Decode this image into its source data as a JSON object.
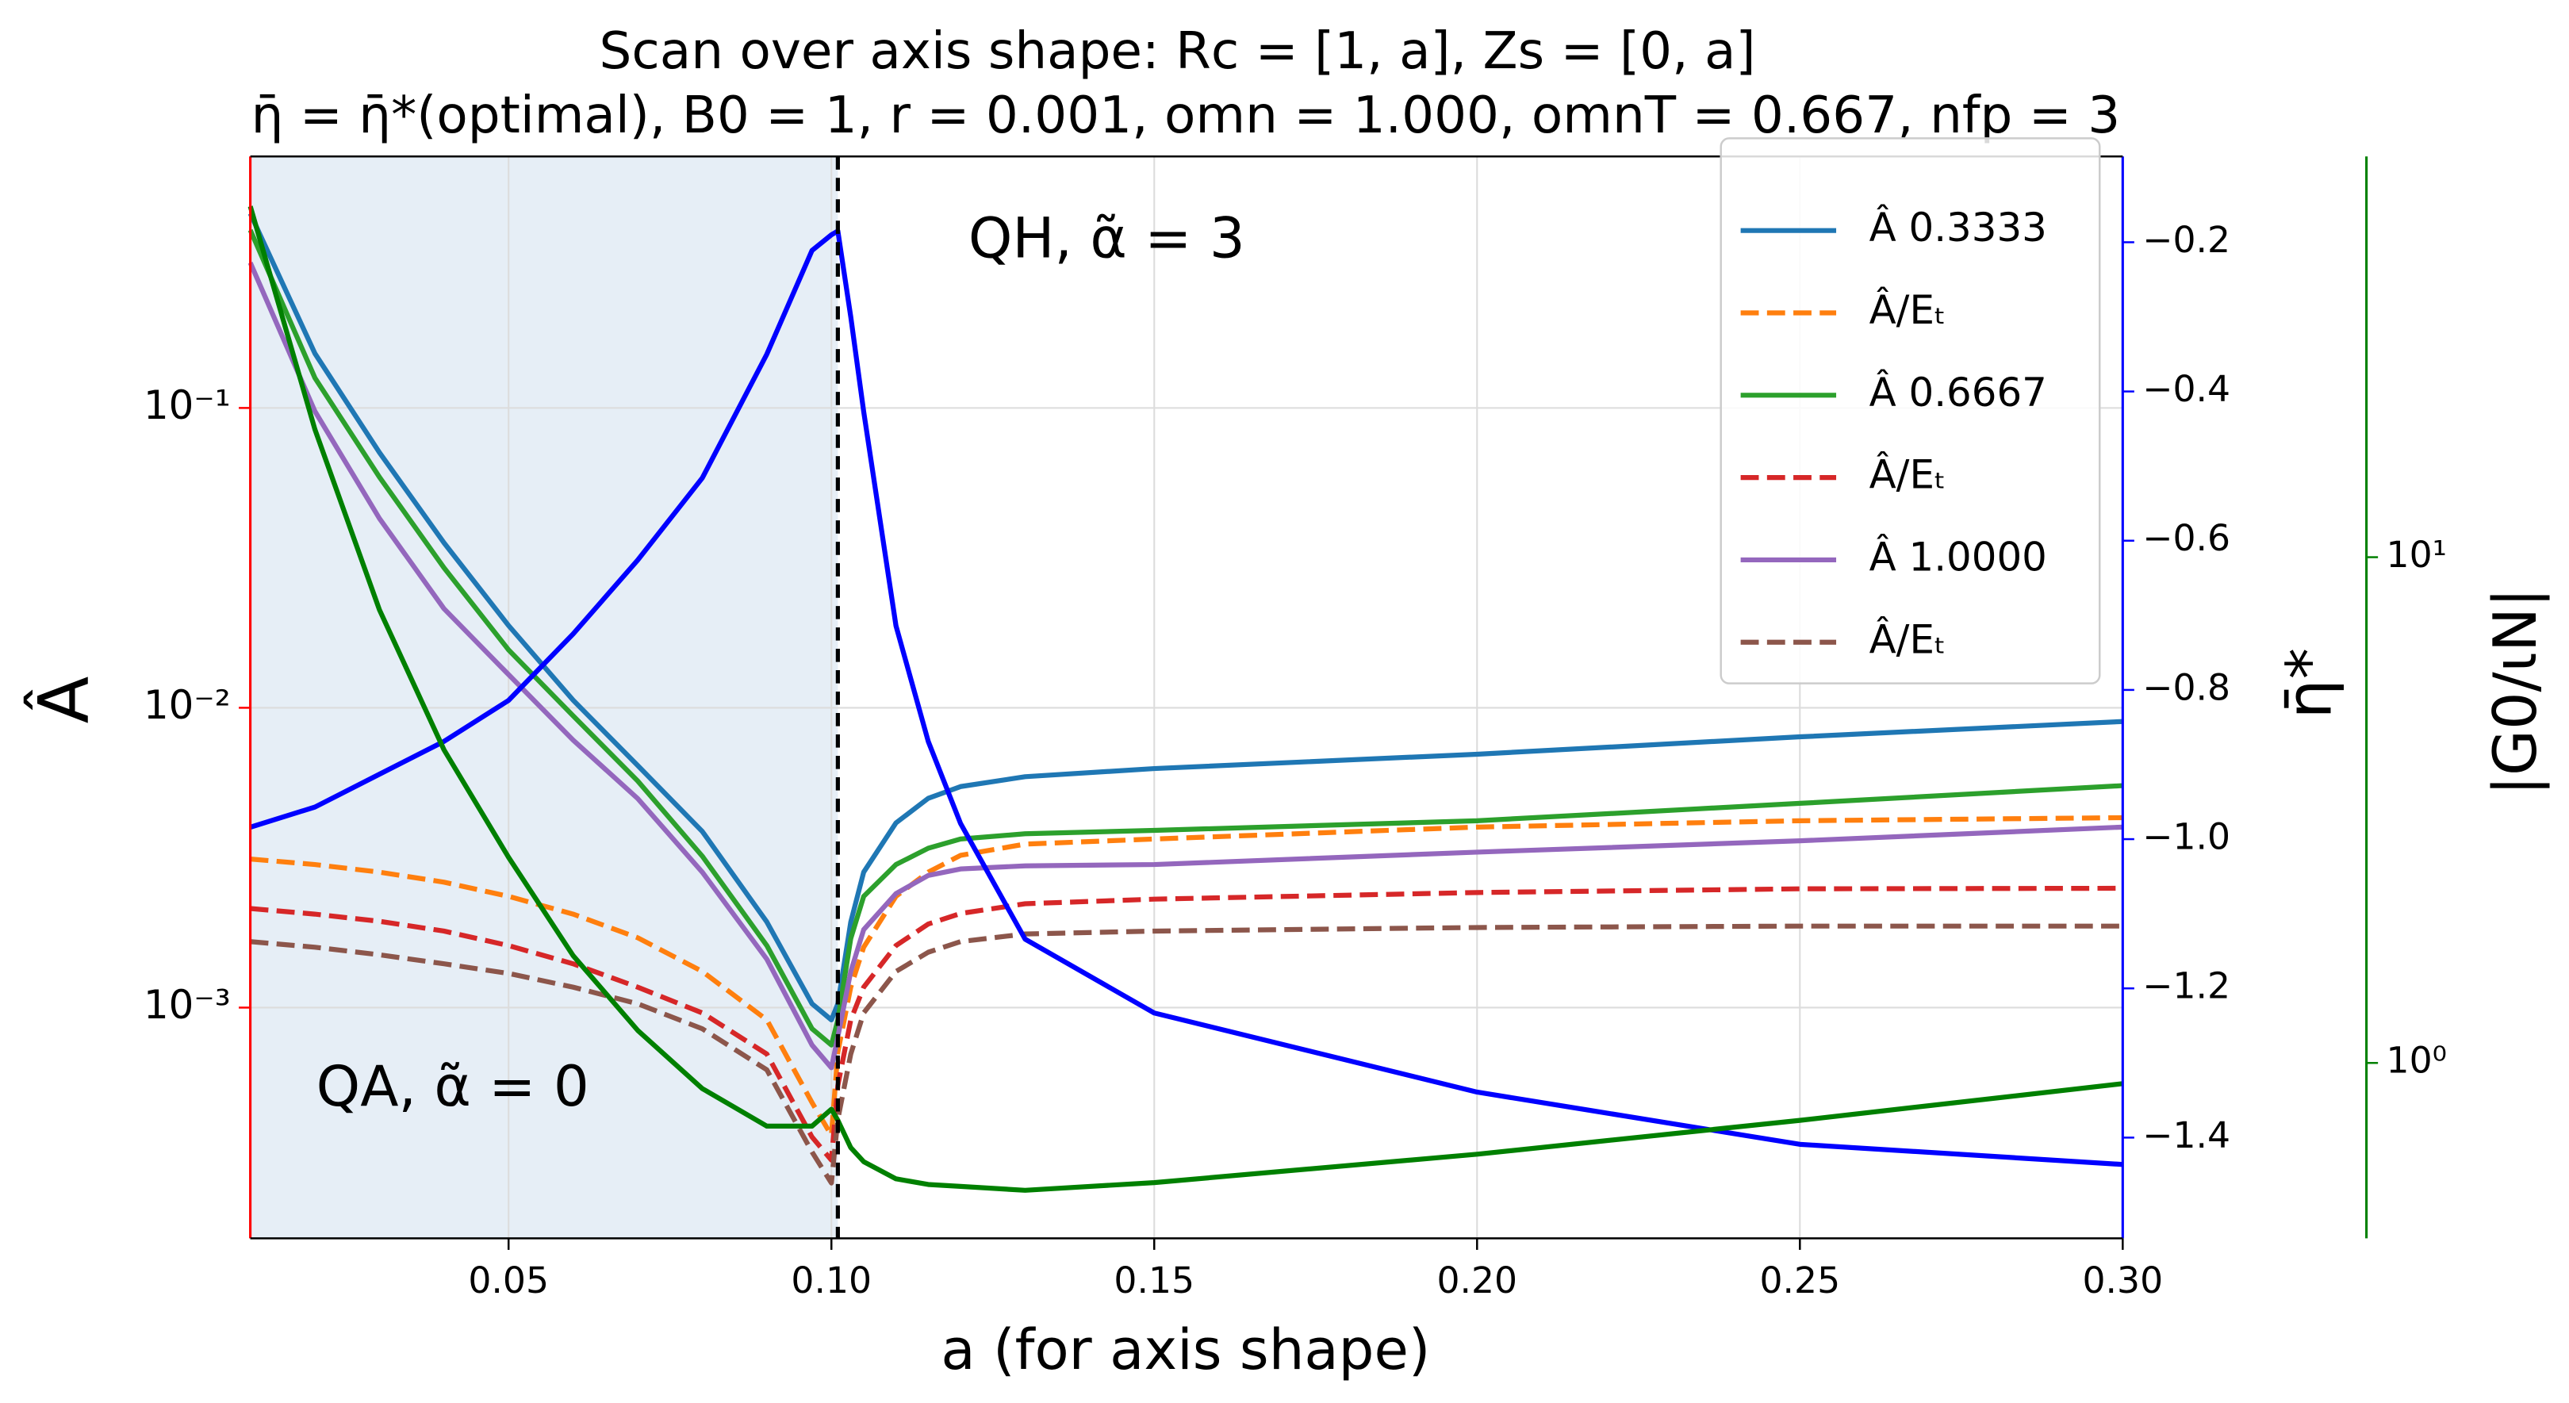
{
  "chart_data": {
    "type": "line",
    "title": "Scan over axis shape: Rc = [1, a], Zs = [0, a]",
    "subtitle": "η̄ = η̄*(optimal),  B0 = 1, r = 0.001, omn = 1.000, omnT = 0.667, nfp = 3",
    "xlabel": "a (for axis shape)",
    "ylabel": "Â",
    "y2label": "η̄*",
    "y3label": "|G0/ιN|",
    "annotations": [
      "QH, α̃ =  3",
      "QA, α̃ = 0"
    ],
    "x": [
      0.01,
      0.02,
      0.03,
      0.04,
      0.05,
      0.06,
      0.07,
      0.08,
      0.09,
      0.097,
      0.1,
      0.101,
      0.103,
      0.105,
      0.11,
      0.115,
      0.12,
      0.13,
      0.15,
      0.2,
      0.25,
      0.3
    ],
    "xlim": [
      0.01,
      0.3
    ],
    "xticks": [
      0.05,
      {
        "value": 0.1,
        "label": "0.10"
      },
      0.15,
      {
        "value": 0.2,
        "label": "0.20"
      },
      0.25,
      {
        "value": 0.3,
        "label": "0.30"
      }
    ],
    "ylim": [
      0.00017,
      0.69
    ],
    "ylog": true,
    "yticks": [
      {
        "value": 0.1,
        "label": "10⁻¹"
      },
      {
        "value": 0.01,
        "label": "10⁻²"
      },
      {
        "value": 0.001,
        "label": "10⁻³"
      }
    ],
    "y2lim": [
      -1.535,
      -0.085
    ],
    "y2ticks": [
      {
        "value": -0.2,
        "label": "−0.2"
      },
      {
        "value": -0.4,
        "label": "−0.4"
      },
      {
        "value": -0.6,
        "label": "−0.6"
      },
      {
        "value": -0.8,
        "label": "−0.8"
      },
      {
        "value": -1.0,
        "label": "−1.0"
      },
      {
        "value": -1.2,
        "label": "−1.2"
      },
      {
        "value": -1.4,
        "label": "−1.4"
      }
    ],
    "y3lim": [
      0.45,
      62
    ],
    "y3log": true,
    "y3ticks": [
      {
        "value": 10,
        "label": "10¹"
      },
      {
        "value": 1,
        "label": "10⁰"
      }
    ],
    "grid": true,
    "legend": "upper right",
    "span": [
      0.01,
      0.101
    ],
    "vline": 0.101,
    "series": [
      {
        "name": "Â 0.3333",
        "color": "#1f77b4",
        "axis": "y",
        "dashed": false,
        "values": [
          0.445,
          0.152,
          0.071,
          0.0355,
          0.0188,
          0.0106,
          0.00642,
          0.00387,
          0.00193,
          0.00103,
          0.00091,
          0.00103,
          0.00193,
          0.00283,
          0.00413,
          0.00499,
          0.00546,
          0.00589,
          0.00627,
          0.007,
          0.008,
          0.009
        ]
      },
      {
        "name": "Â/Eₜ",
        "color": "#ff7f0e",
        "axis": "y",
        "dashed": true,
        "values": [
          0.00313,
          0.003,
          0.00283,
          0.00262,
          0.00235,
          0.00205,
          0.00171,
          0.00132,
          0.00091,
          0.000482,
          0.000375,
          0.00071,
          0.00117,
          0.00159,
          0.00235,
          0.00283,
          0.00322,
          0.00351,
          0.00365,
          0.004,
          0.0042,
          0.0043
        ]
      },
      {
        "name": "Â 0.6667",
        "color": "#2ca02c",
        "axis": "y",
        "dashed": false,
        "values": [
          0.392,
          0.126,
          0.0588,
          0.0293,
          0.0156,
          0.0094,
          0.0057,
          0.0032,
          0.00161,
          0.00085,
          0.00075,
          0.00091,
          0.0017,
          0.00235,
          0.003,
          0.0034,
          0.00365,
          0.0038,
          0.0039,
          0.0042,
          0.0048,
          0.0055
        ]
      },
      {
        "name": "Â/Eₜ",
        "color": "#d62728",
        "axis": "y",
        "dashed": true,
        "values": [
          0.00214,
          0.00205,
          0.00194,
          0.0018,
          0.00161,
          0.0014,
          0.00117,
          0.00096,
          0.0007,
          0.00037,
          0.00031,
          0.00055,
          0.00091,
          0.00117,
          0.00161,
          0.0019,
          0.00206,
          0.00222,
          0.0023,
          0.00242,
          0.00249,
          0.0025
        ]
      },
      {
        "name": "Â 1.0000",
        "color": "#9467bd",
        "axis": "y",
        "dashed": false,
        "values": [
          0.305,
          0.0975,
          0.0428,
          0.0214,
          0.0129,
          0.0078,
          0.00498,
          0.00283,
          0.00145,
          0.00075,
          0.00063,
          0.0008,
          0.00132,
          0.00182,
          0.0024,
          0.00276,
          0.0029,
          0.00297,
          0.003,
          0.0033,
          0.0036,
          0.004
        ]
      },
      {
        "name": "Â/Eₜ",
        "color": "#8c564b",
        "axis": "y",
        "dashed": true,
        "values": [
          0.00166,
          0.00159,
          0.0015,
          0.0014,
          0.0013,
          0.00117,
          0.00103,
          0.00085,
          0.00062,
          0.00033,
          0.00026,
          0.000424,
          0.0007,
          0.00096,
          0.00132,
          0.00153,
          0.00166,
          0.00176,
          0.0018,
          0.00185,
          0.00187,
          0.00187
        ]
      }
    ],
    "extra_series": [
      {
        "color": "#0000ff",
        "axis": "y2",
        "dashed": false,
        "values": [
          -0.984,
          -0.957,
          -0.913,
          -0.869,
          -0.814,
          -0.725,
          -0.626,
          -0.516,
          -0.35,
          -0.211,
          -0.19,
          -0.185,
          -0.3,
          -0.427,
          -0.714,
          -0.869,
          -0.979,
          -1.134,
          -1.233,
          -1.339,
          -1.409,
          -1.436
        ]
      },
      {
        "color": "#008000",
        "axis": "y3",
        "dashed": false,
        "values": [
          49.4,
          17.9,
          7.87,
          4.16,
          2.55,
          1.63,
          1.16,
          0.89,
          0.75,
          0.75,
          0.81,
          0.77,
          0.68,
          0.638,
          0.59,
          0.575,
          0.57,
          0.56,
          0.58,
          0.66,
          0.77,
          0.91
        ]
      }
    ],
    "axis_colors": {
      "y": "#ff0000",
      "y2": "#0000ff",
      "y3": "#008000"
    }
  }
}
